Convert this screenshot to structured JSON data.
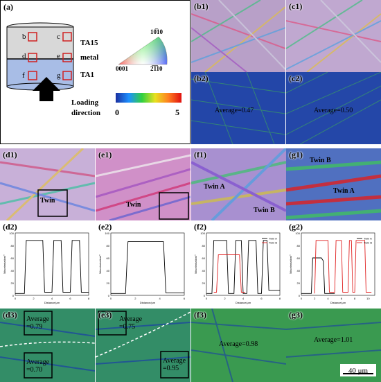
{
  "panel_a": {
    "label": "(a)",
    "regions": [
      "b",
      "c",
      "d",
      "e",
      "f",
      "g"
    ],
    "layers": [
      "TA15",
      "metal",
      "TA1"
    ],
    "ipf": {
      "top": "10̅10",
      "left": "0001",
      "right": "2̅1̅10"
    },
    "loading": "Loading direction",
    "scale_min": "0",
    "scale_max": "5"
  },
  "labels": {
    "b1": "(b1)",
    "b2": "(b2)",
    "c1": "(c1)",
    "c2": "(c2)",
    "d1": "(d1)",
    "d2": "(d2)",
    "d3": "(d3)",
    "e1": "(e1)",
    "e2": "(e2)",
    "e3": "(e3)",
    "f1": "(f1)",
    "f2": "(f2)",
    "f3": "(f3)",
    "g1": "(g1)",
    "g2": "(g2)",
    "g3": "(g3)"
  },
  "averages": {
    "b2": "Average=0.47",
    "c2": "Average=0.50",
    "d3_top": "Average\n=0.79",
    "d3_bot": "Average\n=0.70",
    "e3_top": "Average\n=0.75",
    "e3_bot": "Average\n=0.95",
    "f3": "Average=0.98",
    "g3": "Average=1.01"
  },
  "twins": {
    "d1": "Twin",
    "e1": "Twin",
    "f1_a": "Twin A",
    "f1_b": "Twin B",
    "g1_a": "Twin A",
    "g1_b": "Twin B"
  },
  "plots": {
    "ylabel": "Misorientation/°",
    "xlabel": "Distance/μm",
    "legend_a": "Twin A",
    "legend_b": "Twin B"
  },
  "scale_bar": "40 μm",
  "colors": {
    "low": "#1a3fa6",
    "mid": "#2fae3a",
    "high": "#e8e030",
    "twin_a": "#000000",
    "twin_b": "#e02020"
  },
  "chart_data": [
    {
      "type": "line",
      "panel": "d2",
      "series": [
        {
          "values": [
            [
              0,
              3
            ],
            [
              1,
              3
            ],
            [
              1.2,
              88
            ],
            [
              3,
              88
            ],
            [
              3.2,
              5
            ],
            [
              4,
              5
            ],
            [
              4.2,
              88
            ],
            [
              5,
              88
            ],
            [
              5.2,
              5
            ],
            [
              6,
              5
            ],
            [
              6.2,
              88
            ],
            [
              7,
              88
            ],
            [
              7.2,
              5
            ],
            [
              8,
              5
            ]
          ]
        }
      ],
      "ylim": [
        0,
        100
      ]
    },
    {
      "type": "line",
      "panel": "e2",
      "series": [
        {
          "values": [
            [
              0,
              3
            ],
            [
              1.2,
              3
            ],
            [
              1.4,
              86
            ],
            [
              4.3,
              86
            ],
            [
              4.5,
              4
            ],
            [
              6,
              4
            ]
          ]
        }
      ],
      "ylim": [
        0,
        100
      ]
    },
    {
      "type": "line",
      "panel": "f2",
      "series": [
        {
          "name": "Twin A",
          "values": [
            [
              0,
              3
            ],
            [
              0.6,
              3
            ],
            [
              0.8,
              88
            ],
            [
              2.2,
              88
            ],
            [
              2.4,
              3
            ],
            [
              3,
              3
            ],
            [
              3.2,
              88
            ],
            [
              3.8,
              88
            ],
            [
              4,
              3
            ],
            [
              4.4,
              3
            ],
            [
              4.6,
              88
            ],
            [
              5.4,
              88
            ],
            [
              5.6,
              3
            ],
            [
              6,
              3
            ],
            [
              6.2,
              88
            ],
            [
              6.6,
              88
            ],
            [
              6.8,
              8
            ],
            [
              8,
              8
            ]
          ]
        },
        {
          "name": "Twin B",
          "values": [
            [
              0.8,
              5
            ],
            [
              1.1,
              5
            ],
            [
              1.3,
              65
            ],
            [
              3.6,
              65
            ],
            [
              3.8,
              5
            ],
            [
              4.2,
              5
            ]
          ]
        }
      ],
      "ylim": [
        0,
        100
      ]
    },
    {
      "type": "line",
      "panel": "g2",
      "series": [
        {
          "name": "Twin A",
          "values": [
            [
              0,
              3
            ],
            [
              1.5,
              3
            ],
            [
              1.7,
              60
            ],
            [
              3,
              60
            ],
            [
              3.3,
              55
            ],
            [
              3.5,
              3
            ],
            [
              5,
              3
            ]
          ]
        },
        {
          "name": "Twin B",
          "values": [
            [
              2,
              3
            ],
            [
              2.2,
              88
            ],
            [
              4,
              88
            ],
            [
              4.2,
              5
            ],
            [
              5,
              5
            ],
            [
              5.2,
              88
            ],
            [
              6,
              88
            ],
            [
              6.2,
              5
            ],
            [
              7,
              5
            ],
            [
              7.2,
              88
            ],
            [
              7.5,
              88
            ],
            [
              7.7,
              5
            ],
            [
              8,
              5
            ],
            [
              8.2,
              88
            ],
            [
              9.5,
              88
            ],
            [
              9.7,
              5
            ],
            [
              10.5,
              5
            ]
          ]
        }
      ],
      "ylim": [
        0,
        100
      ]
    }
  ]
}
